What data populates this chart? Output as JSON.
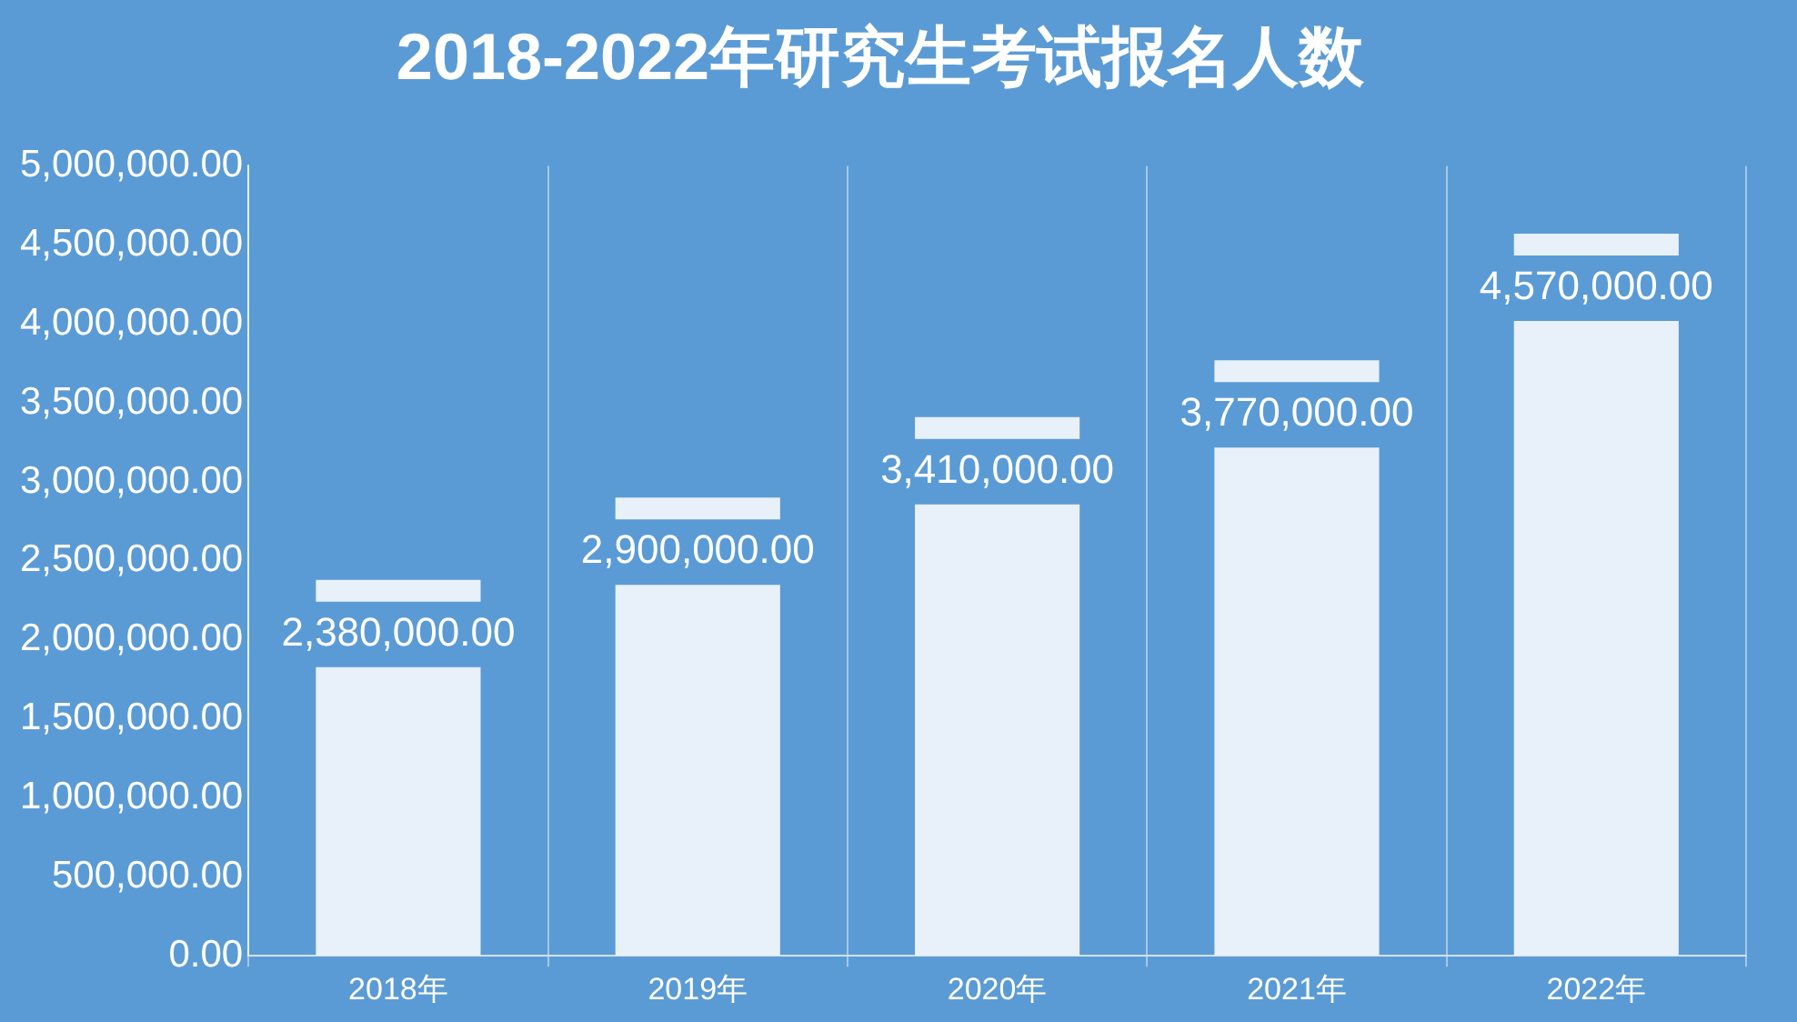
{
  "chart_data": {
    "type": "bar",
    "title": "2018-2022年研究生考试报名人数",
    "categories": [
      "2018年",
      "2019年",
      "2020年",
      "2021年",
      "2022年"
    ],
    "values": [
      2380000,
      2900000,
      3410000,
      3770000,
      4570000
    ],
    "value_labels": [
      "2,380,000.00",
      "2,900,000.00",
      "3,410,000.00",
      "3,770,000.00",
      "4,570,000.00"
    ],
    "color": "#e8f0fa",
    "ylim": [
      0,
      5000000
    ],
    "yticks": [
      {
        "value": 0,
        "label": "0.00"
      },
      {
        "value": 500000,
        "label": "500,000.00"
      },
      {
        "value": 1000000,
        "label": "1,000,000.00"
      },
      {
        "value": 1500000,
        "label": "1,500,000.00"
      },
      {
        "value": 2000000,
        "label": "2,000,000.00"
      },
      {
        "value": 2500000,
        "label": "2,500,000.00"
      },
      {
        "value": 3000000,
        "label": "3,000,000.00"
      },
      {
        "value": 3500000,
        "label": "3,500,000.00"
      },
      {
        "value": 4000000,
        "label": "4,000,000.00"
      },
      {
        "value": 4500000,
        "label": "4,500,000.00"
      },
      {
        "value": 5000000,
        "label": "5,000,000.00"
      }
    ],
    "grid": "x",
    "legend": false
  }
}
